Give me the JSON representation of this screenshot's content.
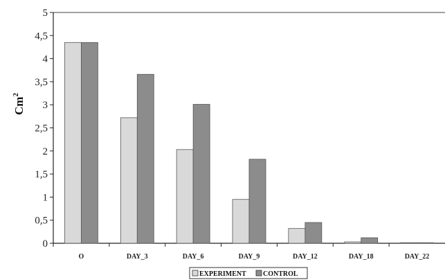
{
  "chart_data": {
    "type": "bar",
    "categories": [
      "O",
      "DAY_3",
      "DAY_6",
      "DAY_9",
      "DAY_12",
      "DAY_18",
      "DAY_22"
    ],
    "series": [
      {
        "name": "EXPERIMENT",
        "values": [
          4.35,
          2.72,
          2.03,
          0.95,
          0.32,
          0.03,
          0.0
        ],
        "color": "#d9d9d9"
      },
      {
        "name": "CONTROL",
        "values": [
          4.35,
          3.66,
          3.01,
          1.82,
          0.45,
          0.12,
          0.0
        ],
        "color": "#8c8c8c"
      }
    ],
    "yticks": [
      "0",
      "0,5",
      "1",
      "1,5",
      "2",
      "2,5",
      "3",
      "3,5",
      "4",
      "4,5",
      "5"
    ],
    "ylim": [
      0,
      5
    ],
    "ylabel": "Cm",
    "ylabel_sup": "2",
    "grid": false,
    "legend_position": "bottom-center"
  }
}
